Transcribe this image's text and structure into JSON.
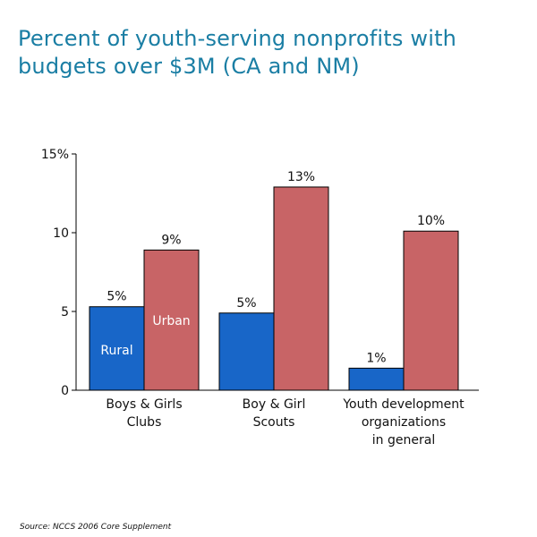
{
  "chart_data": {
    "type": "bar",
    "title": "Percent of youth-serving nonprofits with budgets over $3M (CA and NM)",
    "categories": [
      [
        "Boys & Girls",
        "Clubs"
      ],
      [
        "Boy & Girl",
        "Scouts"
      ],
      [
        "Youth development",
        "organizations",
        "in general"
      ]
    ],
    "series": [
      {
        "name": "Rural",
        "color": "#1866c8",
        "values": [
          5.3,
          4.9,
          1.4
        ],
        "labels": [
          "5%",
          "5%",
          "1%"
        ]
      },
      {
        "name": "Urban",
        "color": "#c86466",
        "values": [
          8.9,
          12.9,
          10.1
        ],
        "labels": [
          "9%",
          "13%",
          "10%"
        ]
      }
    ],
    "y_ticks": [
      0,
      5,
      10,
      15
    ],
    "y_tick_labels": [
      "0",
      "5",
      "10",
      "15%"
    ],
    "ylim": [
      0,
      15
    ],
    "xlabel": "",
    "ylabel": "",
    "grid": false,
    "legend": "inside first bar pair",
    "source": "Source: NCCS 2006 Core Supplement"
  }
}
